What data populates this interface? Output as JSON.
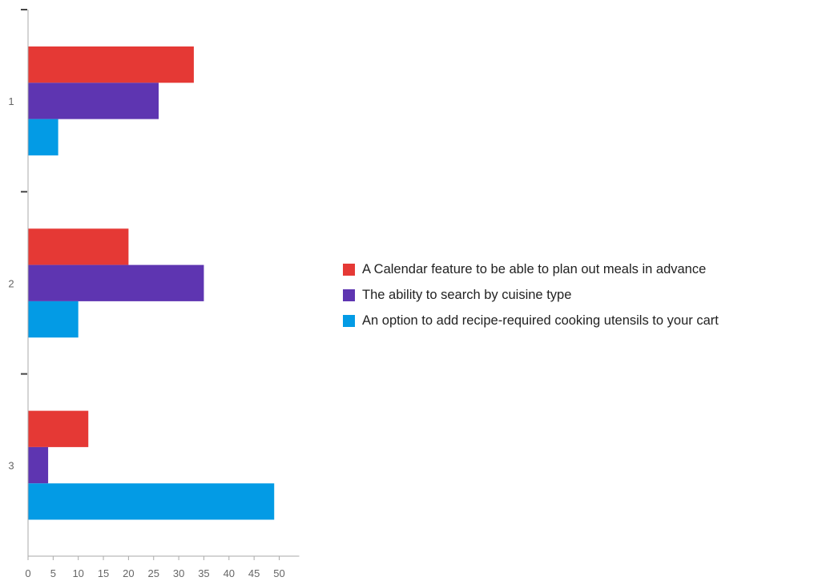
{
  "chart_data": {
    "type": "bar",
    "orientation": "horizontal",
    "categories": [
      "1",
      "2",
      "3"
    ],
    "series": [
      {
        "name": "A Calendar feature to be able to plan out meals in advance",
        "color": "#e53935",
        "values": [
          33,
          20,
          12
        ]
      },
      {
        "name": "The ability to search by cuisine type",
        "color": "#5e35b1",
        "values": [
          26,
          35,
          4
        ]
      },
      {
        "name": "An option to add recipe-required cooking utensils to your cart",
        "color": "#039be5",
        "values": [
          6,
          10,
          49
        ]
      }
    ],
    "x_ticks": [
      "0",
      "5",
      "10",
      "15",
      "20",
      "25",
      "30",
      "35",
      "40",
      "45",
      "50"
    ],
    "xlim": [
      0,
      50
    ],
    "title": "",
    "xlabel": "",
    "ylabel": "",
    "grid": false,
    "legend_position": "right"
  }
}
